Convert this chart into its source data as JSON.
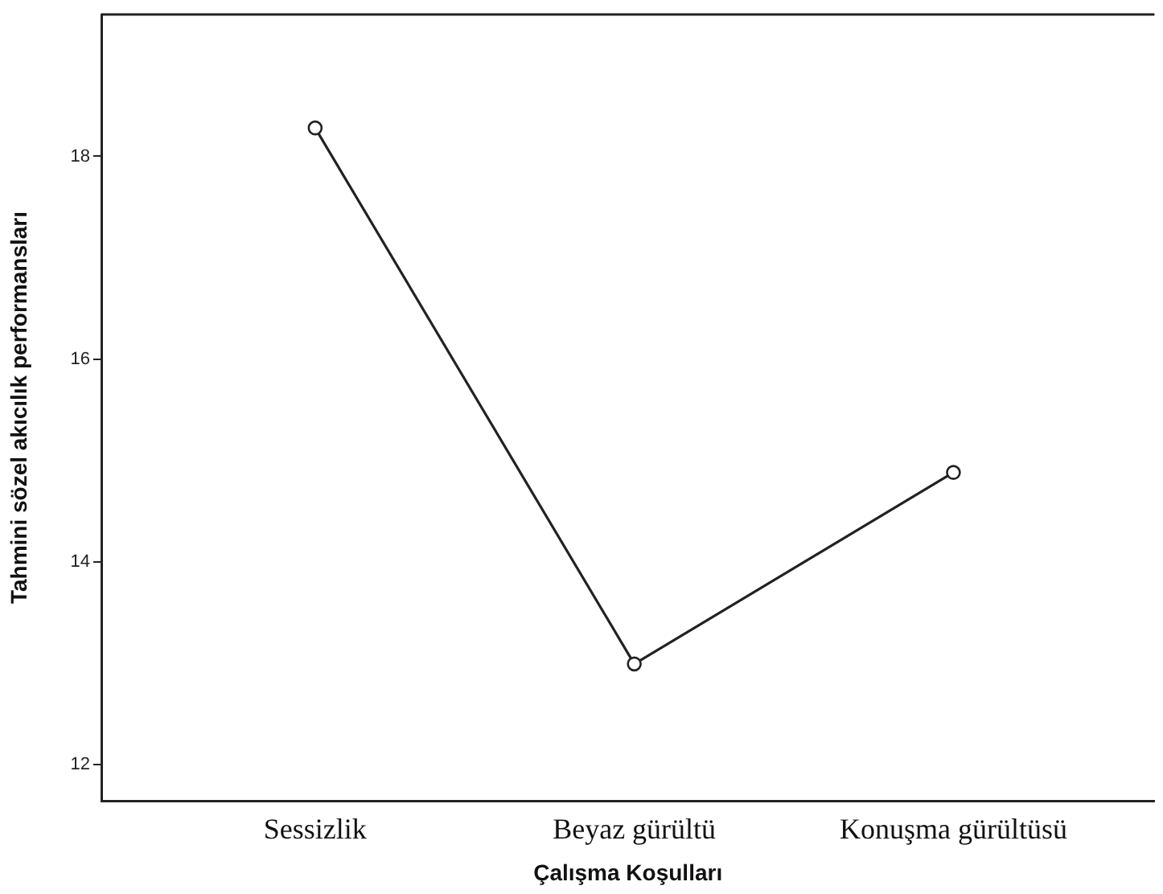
{
  "chart_data": {
    "type": "line",
    "xlabel": "Çalışma Koşulları",
    "ylabel": "Tahmini sözel akıcılık performansları",
    "categories": [
      "Sessizlik",
      "Beyaz gürültü",
      "Konuşma gürültüsü"
    ],
    "series": [
      {
        "color": "#222222",
        "values": [
          18.28,
          12.99,
          14.88
        ]
      }
    ],
    "ylim": [
      11.64,
      19.4
    ],
    "yticks": [
      12,
      14,
      16,
      18
    ],
    "grid": false,
    "legend": false,
    "marker": "circle",
    "line_style": "solid"
  }
}
